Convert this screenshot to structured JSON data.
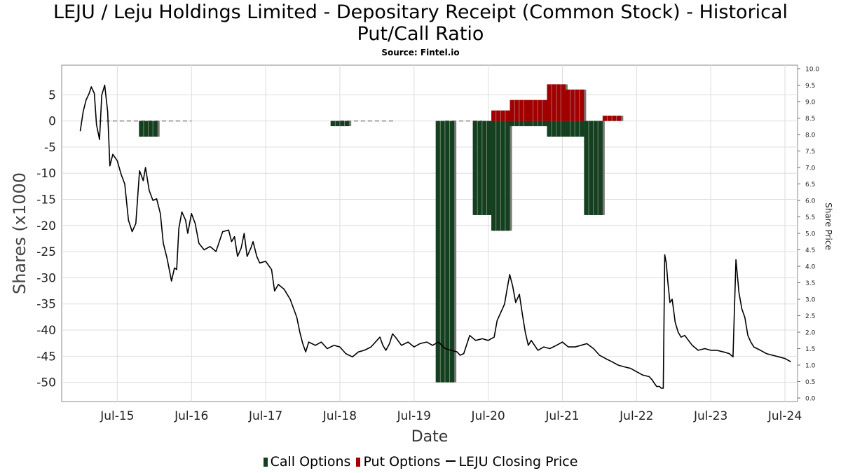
{
  "chart_data": {
    "type": "bar",
    "title_lines": [
      "LEJU / Leju Holdings Limited - Depositary Receipt (Common Stock) - Historical",
      "Put/Call Ratio"
    ],
    "subtitle": "Source: Fintel.io",
    "xlabel": "Date",
    "ylabel": "Shares (x1000",
    "y2label": "Share Price",
    "x_ticks": [
      "Jul-15",
      "Jul-16",
      "Jul-17",
      "Jul-18",
      "Jul-19",
      "Jul-20",
      "Jul-21",
      "Jul-22",
      "Jul-23",
      "Jul-24"
    ],
    "x_range": [
      2014.75,
      2024.67
    ],
    "ylim": [
      -53,
      10
    ],
    "y_ticks": [
      5,
      0,
      -5,
      -10,
      -15,
      -20,
      -25,
      -30,
      -35,
      -40,
      -45,
      -50
    ],
    "y2lim": [
      0.0,
      10.0
    ],
    "y2_ticks": [
      "0.0",
      "0.5",
      "1.0",
      "1.5",
      "2.0",
      "2.5",
      "3.0",
      "3.5",
      "4.0",
      "4.5",
      "5.0",
      "5.5",
      "6.0",
      "6.5",
      "7.0",
      "7.5",
      "8.0",
      "8.5",
      "9.0",
      "9.5",
      "10.0"
    ],
    "grid": true,
    "legend_position": "bottom",
    "colors": {
      "call": "#14401f",
      "put": "#a00000",
      "price": "#000000",
      "zero_line": "#888888"
    },
    "series": [
      {
        "name": "Call Options",
        "kind": "bar",
        "points": [
          {
            "x": 2015.917,
            "w": 0.25,
            "v": -3
          },
          {
            "x": 2018.5,
            "w": 0.25,
            "v": -1
          },
          {
            "x": 2019.917,
            "w": 0.25,
            "v": -50
          },
          {
            "x": 2020.417,
            "w": 0.25,
            "v": -18
          },
          {
            "x": 2020.667,
            "w": 0.25,
            "v": -21
          },
          {
            "x": 2020.917,
            "w": 0.25,
            "v": -1
          },
          {
            "x": 2021.167,
            "w": 0.25,
            "v": -1
          },
          {
            "x": 2021.417,
            "w": 0.25,
            "v": -3
          },
          {
            "x": 2021.667,
            "w": 0.25,
            "v": -3
          },
          {
            "x": 2021.917,
            "w": 0.25,
            "v": -18
          }
        ]
      },
      {
        "name": "Put Options",
        "kind": "bar",
        "points": [
          {
            "x": 2020.667,
            "w": 0.25,
            "v": 2
          },
          {
            "x": 2020.917,
            "w": 0.25,
            "v": 4
          },
          {
            "x": 2021.167,
            "w": 0.25,
            "v": 4
          },
          {
            "x": 2021.417,
            "w": 0.25,
            "v": 7
          },
          {
            "x": 2021.667,
            "w": 0.25,
            "v": 6
          },
          {
            "x": 2022.167,
            "w": 0.25,
            "v": 1
          }
        ]
      },
      {
        "name": "LEJU Closing Price",
        "kind": "line",
        "axis": "right",
        "points": [
          [
            2015.0,
            8.1
          ],
          [
            2015.04,
            8.7
          ],
          [
            2015.08,
            9.05
          ],
          [
            2015.12,
            9.25
          ],
          [
            2015.15,
            9.45
          ],
          [
            2015.19,
            9.25
          ],
          [
            2015.22,
            8.3
          ],
          [
            2015.26,
            7.85
          ],
          [
            2015.29,
            9.2
          ],
          [
            2015.33,
            9.5
          ],
          [
            2015.37,
            8.7
          ],
          [
            2015.4,
            7.05
          ],
          [
            2015.44,
            7.4
          ],
          [
            2015.5,
            7.2
          ],
          [
            2015.55,
            6.8
          ],
          [
            2015.6,
            6.5
          ],
          [
            2015.65,
            5.4
          ],
          [
            2015.7,
            5.05
          ],
          [
            2015.75,
            5.3
          ],
          [
            2015.8,
            6.9
          ],
          [
            2015.85,
            6.6
          ],
          [
            2015.88,
            7.0
          ],
          [
            2015.93,
            6.3
          ],
          [
            2015.98,
            6.0
          ],
          [
            2016.03,
            6.05
          ],
          [
            2016.08,
            5.6
          ],
          [
            2016.12,
            4.7
          ],
          [
            2016.17,
            4.25
          ],
          [
            2016.2,
            3.9
          ],
          [
            2016.23,
            3.55
          ],
          [
            2016.27,
            3.95
          ],
          [
            2016.3,
            3.9
          ],
          [
            2016.33,
            5.15
          ],
          [
            2016.37,
            5.65
          ],
          [
            2016.42,
            5.4
          ],
          [
            2016.45,
            5.0
          ],
          [
            2016.5,
            5.6
          ],
          [
            2016.55,
            5.3
          ],
          [
            2016.6,
            4.7
          ],
          [
            2016.67,
            4.5
          ],
          [
            2016.75,
            4.6
          ],
          [
            2016.83,
            4.45
          ],
          [
            2016.92,
            5.05
          ],
          [
            2017.0,
            5.1
          ],
          [
            2017.04,
            4.75
          ],
          [
            2017.08,
            4.9
          ],
          [
            2017.12,
            4.3
          ],
          [
            2017.17,
            4.55
          ],
          [
            2017.21,
            5.0
          ],
          [
            2017.25,
            4.3
          ],
          [
            2017.3,
            4.55
          ],
          [
            2017.33,
            4.75
          ],
          [
            2017.38,
            4.3
          ],
          [
            2017.42,
            4.1
          ],
          [
            2017.5,
            4.15
          ],
          [
            2017.58,
            3.9
          ],
          [
            2017.62,
            3.25
          ],
          [
            2017.67,
            3.45
          ],
          [
            2017.75,
            3.3
          ],
          [
            2017.83,
            3.0
          ],
          [
            2017.92,
            2.45
          ],
          [
            2017.96,
            2.0
          ],
          [
            2018.0,
            1.65
          ],
          [
            2018.04,
            1.4
          ],
          [
            2018.08,
            1.7
          ],
          [
            2018.17,
            1.6
          ],
          [
            2018.25,
            1.7
          ],
          [
            2018.33,
            1.5
          ],
          [
            2018.42,
            1.6
          ],
          [
            2018.5,
            1.55
          ],
          [
            2018.58,
            1.35
          ],
          [
            2018.67,
            1.25
          ],
          [
            2018.75,
            1.4
          ],
          [
            2018.83,
            1.45
          ],
          [
            2018.92,
            1.55
          ],
          [
            2019.0,
            1.75
          ],
          [
            2019.04,
            1.85
          ],
          [
            2019.08,
            1.6
          ],
          [
            2019.12,
            1.45
          ],
          [
            2019.17,
            1.65
          ],
          [
            2019.21,
            1.95
          ],
          [
            2019.25,
            1.85
          ],
          [
            2019.33,
            1.6
          ],
          [
            2019.42,
            1.7
          ],
          [
            2019.5,
            1.55
          ],
          [
            2019.58,
            1.65
          ],
          [
            2019.67,
            1.7
          ],
          [
            2019.75,
            1.6
          ],
          [
            2019.83,
            1.7
          ],
          [
            2019.92,
            1.5
          ],
          [
            2020.0,
            1.45
          ],
          [
            2020.08,
            1.4
          ],
          [
            2020.12,
            1.3
          ],
          [
            2020.17,
            1.35
          ],
          [
            2020.25,
            1.9
          ],
          [
            2020.33,
            1.75
          ],
          [
            2020.42,
            1.8
          ],
          [
            2020.5,
            1.75
          ],
          [
            2020.58,
            1.85
          ],
          [
            2020.62,
            2.35
          ],
          [
            2020.67,
            2.6
          ],
          [
            2020.72,
            2.85
          ],
          [
            2020.75,
            3.25
          ],
          [
            2020.79,
            3.75
          ],
          [
            2020.83,
            3.4
          ],
          [
            2020.87,
            2.9
          ],
          [
            2020.92,
            3.15
          ],
          [
            2020.96,
            2.55
          ],
          [
            2021.0,
            2.0
          ],
          [
            2021.04,
            1.6
          ],
          [
            2021.08,
            1.75
          ],
          [
            2021.17,
            1.45
          ],
          [
            2021.25,
            1.55
          ],
          [
            2021.33,
            1.5
          ],
          [
            2021.42,
            1.6
          ],
          [
            2021.5,
            1.7
          ],
          [
            2021.58,
            1.55
          ],
          [
            2021.67,
            1.55
          ],
          [
            2021.75,
            1.6
          ],
          [
            2021.83,
            1.65
          ],
          [
            2021.92,
            1.5
          ],
          [
            2022.0,
            1.3
          ],
          [
            2022.08,
            1.2
          ],
          [
            2022.17,
            1.1
          ],
          [
            2022.25,
            1.0
          ],
          [
            2022.33,
            0.95
          ],
          [
            2022.42,
            0.9
          ],
          [
            2022.5,
            0.8
          ],
          [
            2022.58,
            0.7
          ],
          [
            2022.67,
            0.65
          ],
          [
            2022.71,
            0.55
          ],
          [
            2022.74,
            0.45
          ],
          [
            2022.77,
            0.35
          ],
          [
            2022.81,
            0.35
          ],
          [
            2022.83,
            0.3
          ],
          [
            2022.86,
            0.3
          ],
          [
            2022.88,
            4.35
          ],
          [
            2022.9,
            4.1
          ],
          [
            2022.92,
            3.55
          ],
          [
            2022.95,
            2.9
          ],
          [
            2022.98,
            3.0
          ],
          [
            2023.02,
            2.3
          ],
          [
            2023.06,
            2.0
          ],
          [
            2023.1,
            1.85
          ],
          [
            2023.15,
            1.9
          ],
          [
            2023.2,
            1.75
          ],
          [
            2023.25,
            1.6
          ],
          [
            2023.33,
            1.45
          ],
          [
            2023.42,
            1.5
          ],
          [
            2023.5,
            1.45
          ],
          [
            2023.58,
            1.45
          ],
          [
            2023.67,
            1.4
          ],
          [
            2023.75,
            1.35
          ],
          [
            2023.8,
            1.25
          ],
          [
            2023.84,
            4.2
          ],
          [
            2023.88,
            3.2
          ],
          [
            2023.92,
            2.7
          ],
          [
            2023.96,
            2.45
          ],
          [
            2024.0,
            1.9
          ],
          [
            2024.04,
            1.7
          ],
          [
            2024.08,
            1.55
          ],
          [
            2024.17,
            1.45
          ],
          [
            2024.25,
            1.35
          ],
          [
            2024.33,
            1.3
          ],
          [
            2024.42,
            1.25
          ],
          [
            2024.5,
            1.2
          ],
          [
            2024.58,
            1.1
          ]
        ]
      }
    ]
  },
  "legend": {
    "call_label": "Call Options",
    "put_label": "Put Options",
    "price_label": "LEJU Closing Price"
  }
}
